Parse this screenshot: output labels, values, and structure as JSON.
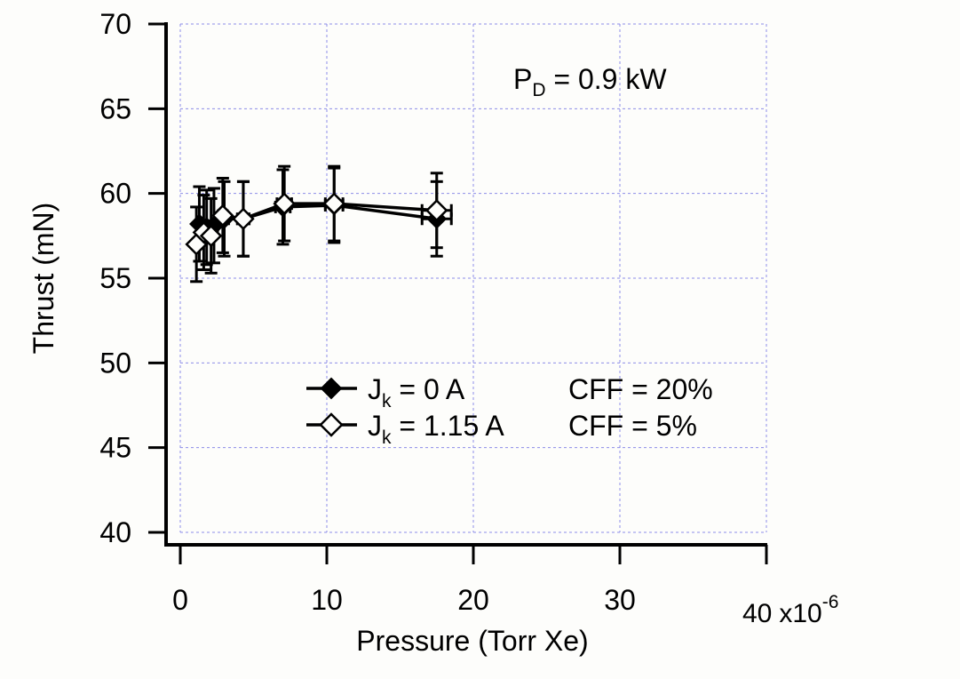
{
  "chart_data": {
    "type": "line",
    "xlabel": "Pressure (Torr Xe)",
    "ylabel": "Thrust (mN)",
    "x_multiplier": "x10",
    "x_multiplier_exp": "-6",
    "xlim": [
      0,
      40
    ],
    "ylim": [
      40,
      70
    ],
    "x_ticks": [
      "0",
      "10",
      "20",
      "30",
      "40"
    ],
    "y_ticks": [
      "40",
      "45",
      "50",
      "55",
      "60",
      "65",
      "70"
    ],
    "grid": true,
    "annotation": {
      "main": "P",
      "sub": "D",
      "rest": " = 0.9 kW"
    },
    "legend_position": "center",
    "series": [
      {
        "name_main": "J",
        "name_sub": "k",
        "name_rest": " = 0 A",
        "extra": "CFF = 20%",
        "marker": "filled-diamond",
        "x": [
          1.3,
          1.8,
          2.3,
          3.0,
          4.3,
          7.0,
          10.5,
          17.5
        ],
        "y": [
          58.2,
          58.0,
          58.1,
          58.5,
          58.5,
          59.2,
          59.3,
          58.5
        ],
        "yerr": [
          2.2,
          2.2,
          2.2,
          2.2,
          2.2,
          2.2,
          2.2,
          2.2
        ],
        "xerr": [
          0.2,
          0.2,
          0.25,
          0.3,
          0.4,
          0.5,
          0.6,
          1.0
        ]
      },
      {
        "name_main": "J",
        "name_sub": "k",
        "name_rest": " = 1.15 A",
        "extra": "CFF = 5%",
        "marker": "open-diamond",
        "x": [
          1.1,
          1.6,
          2.1,
          2.9,
          4.3,
          7.1,
          10.5,
          17.5
        ],
        "y": [
          57.0,
          57.7,
          57.5,
          58.7,
          58.5,
          59.4,
          59.4,
          59.0
        ],
        "yerr": [
          2.2,
          2.2,
          2.2,
          2.2,
          2.2,
          2.2,
          2.2,
          2.2
        ],
        "xerr": [
          0.2,
          0.2,
          0.25,
          0.3,
          0.4,
          0.5,
          0.6,
          1.0
        ]
      }
    ]
  }
}
